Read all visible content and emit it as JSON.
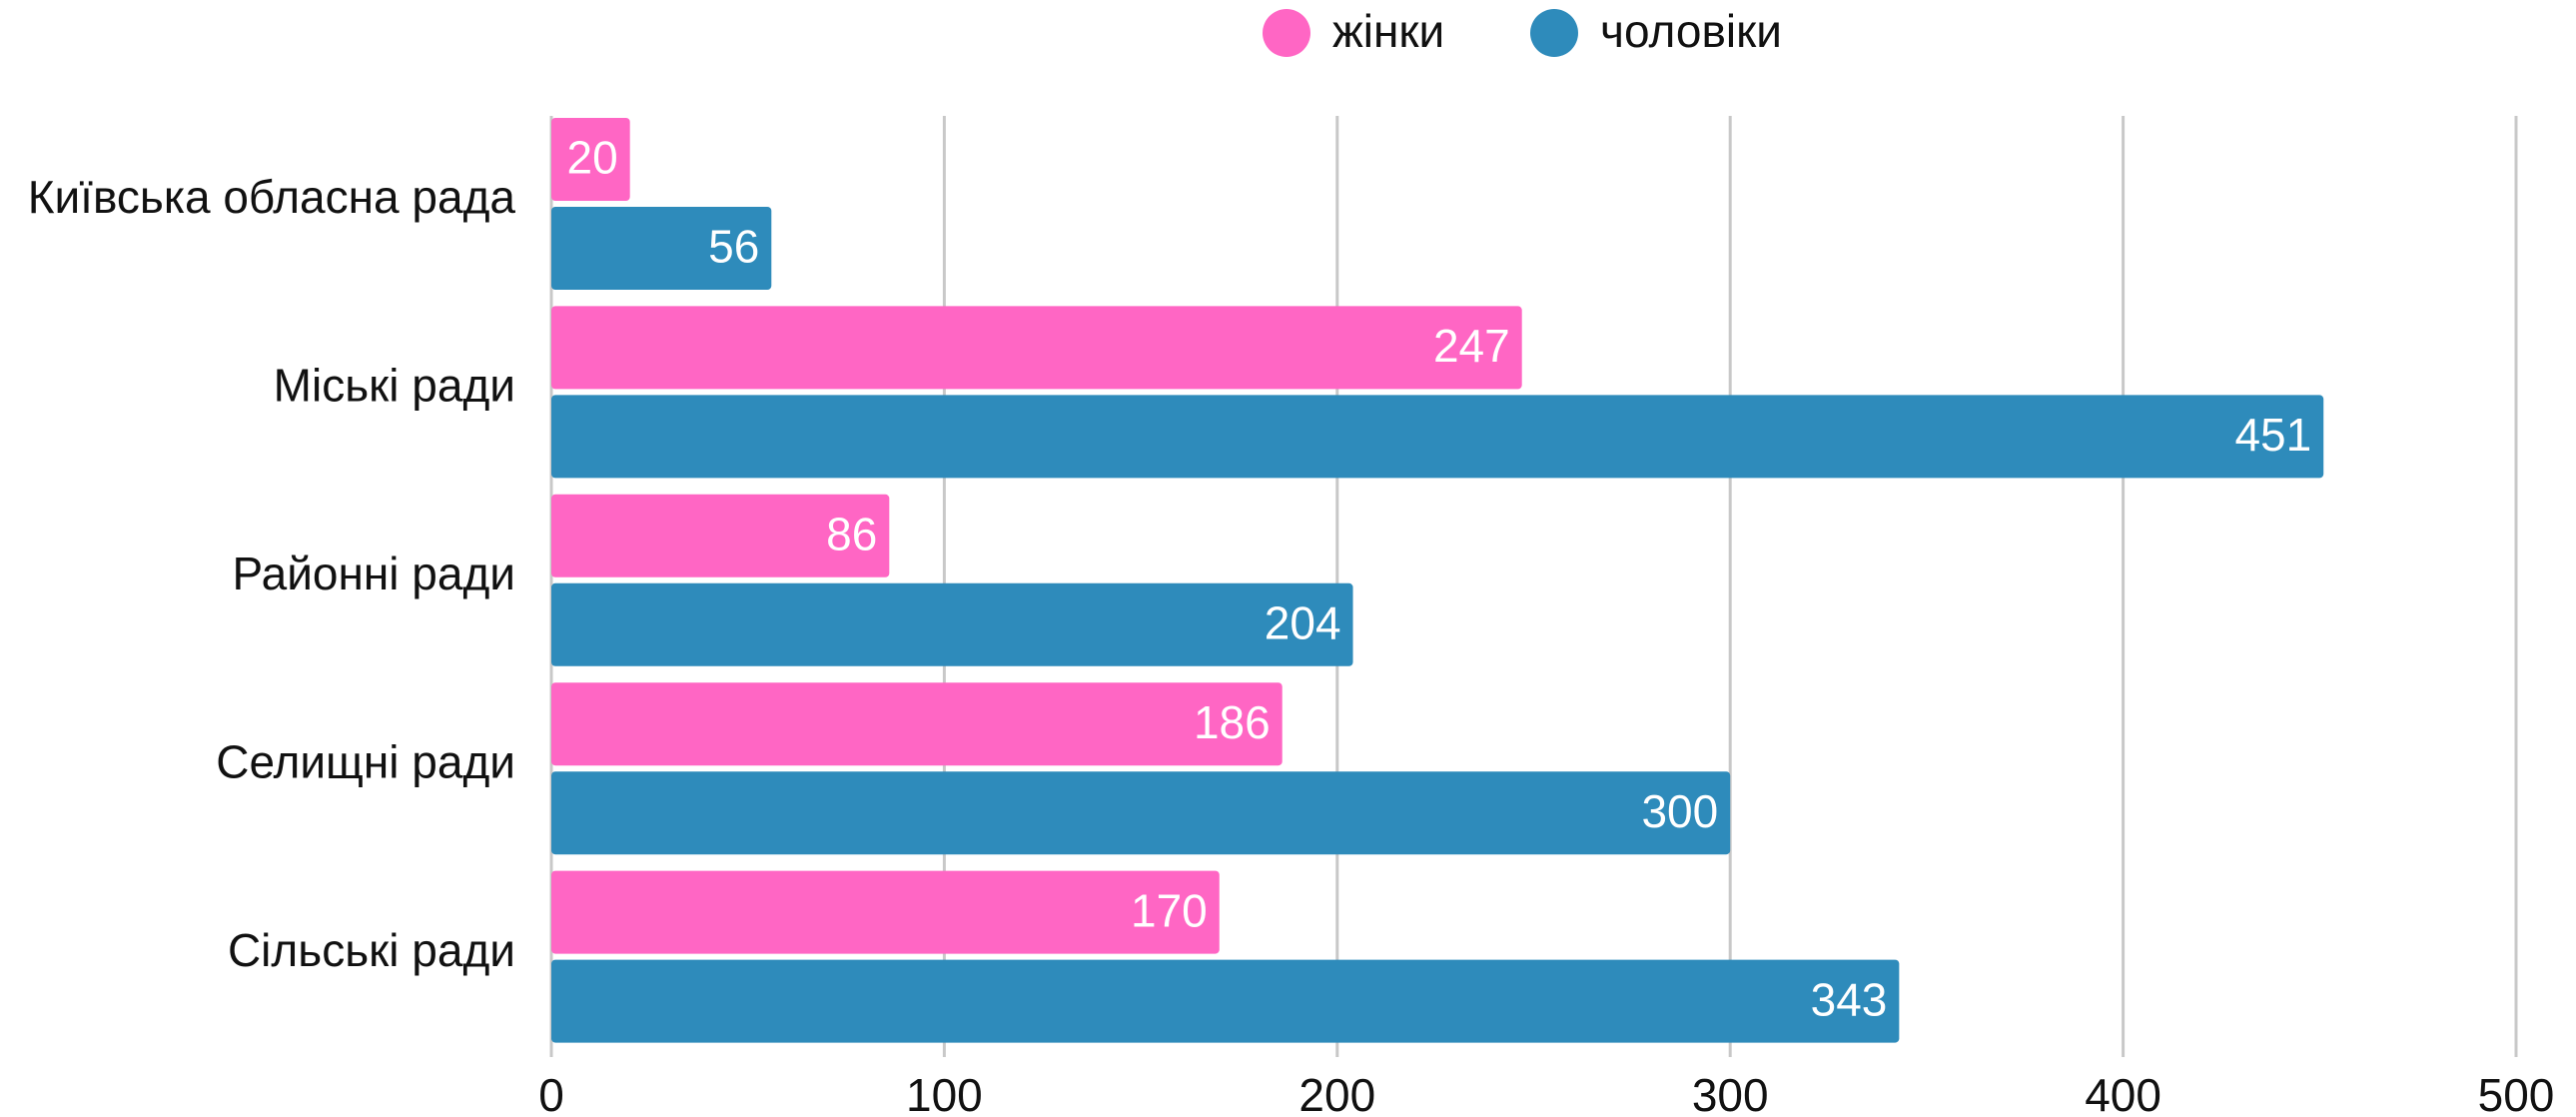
{
  "chart_data": {
    "type": "bar",
    "orientation": "horizontal",
    "categories": [
      "Київська обласна рада",
      "Міські ради",
      "Районні ради",
      "Селищні ради",
      "Сільські ради"
    ],
    "series": [
      {
        "name": "жінки",
        "color": "#ff66c4",
        "values": [
          20,
          247,
          86,
          186,
          170
        ]
      },
      {
        "name": "чоловіки",
        "color": "#2e8bbb",
        "values": [
          56,
          451,
          204,
          300,
          343
        ]
      }
    ],
    "xlim": [
      0,
      500
    ],
    "xticks": [
      0,
      100,
      200,
      300,
      400,
      500
    ],
    "grid": true,
    "legend": "top"
  }
}
